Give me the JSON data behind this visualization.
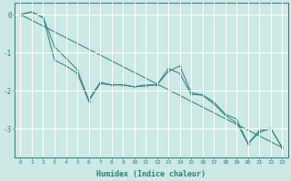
{
  "x": [
    0,
    1,
    2,
    3,
    4,
    5,
    6,
    7,
    8,
    9,
    10,
    11,
    12,
    13,
    14,
    15,
    16,
    17,
    18,
    19,
    20,
    21,
    22,
    23
  ],
  "line_straight": [
    0.0,
    -0.152,
    -0.304,
    -0.457,
    -0.609,
    -0.761,
    -0.913,
    -1.065,
    -1.217,
    -1.37,
    -1.522,
    -1.674,
    -1.826,
    -1.978,
    -2.13,
    -2.283,
    -2.435,
    -2.587,
    -2.739,
    -2.891,
    -3.043,
    -3.196,
    -3.348,
    -3.5
  ],
  "line_zigzag": [
    0.0,
    0.07,
    -0.08,
    -1.2,
    -1.35,
    -1.55,
    -2.28,
    -1.82,
    -1.85,
    -1.85,
    -1.9,
    -1.88,
    -1.85,
    -1.42,
    -1.55,
    -2.1,
    -2.12,
    -2.3,
    -2.62,
    -2.75,
    -3.4,
    -3.05,
    -3.0,
    -3.5
  ],
  "line_close": [
    0.0,
    0.07,
    -0.08,
    -0.85,
    -1.15,
    -1.45,
    -2.25,
    -1.78,
    -1.85,
    -1.85,
    -1.9,
    -1.85,
    -1.85,
    -1.5,
    -1.35,
    -2.05,
    -2.12,
    -2.35,
    -2.65,
    -2.85,
    -3.4,
    -3.1,
    -3.0,
    -3.5
  ],
  "bg_color": "#cce9e5",
  "grid_color": "#ffffff",
  "line_color": "#2e7d6e",
  "xlabel": "Humidex (Indice chaleur)",
  "xlim": [
    -0.5,
    23.5
  ],
  "ylim": [
    -3.75,
    0.3
  ],
  "yticks": [
    0,
    -1,
    -2,
    -3
  ],
  "xticks": [
    0,
    1,
    2,
    3,
    4,
    5,
    6,
    7,
    8,
    9,
    10,
    11,
    12,
    13,
    14,
    15,
    16,
    17,
    18,
    19,
    20,
    21,
    22,
    23
  ]
}
